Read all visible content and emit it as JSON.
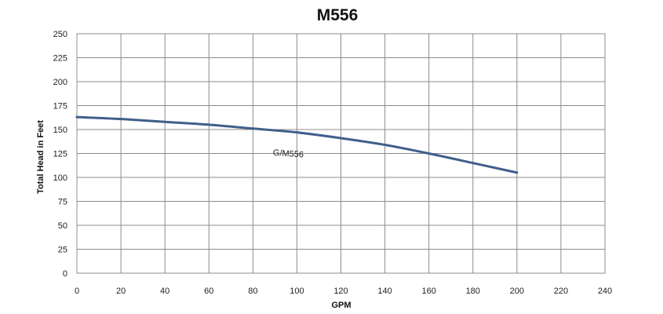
{
  "chart_data": {
    "type": "line",
    "title": "M556",
    "xlabel": "GPM",
    "ylabel": "Total Head in Feet",
    "xlim": [
      0,
      240
    ],
    "ylim": [
      0,
      250
    ],
    "xticks": [
      0,
      20,
      40,
      60,
      80,
      100,
      120,
      140,
      160,
      180,
      200,
      220,
      240
    ],
    "yticks": [
      0,
      25,
      50,
      75,
      100,
      125,
      150,
      175,
      200,
      225,
      250
    ],
    "grid": true,
    "series": [
      {
        "name": "G/M556",
        "color": "#3f5f8a",
        "x": [
          0,
          20,
          40,
          60,
          80,
          100,
          120,
          140,
          160,
          180,
          200
        ],
        "y": [
          163,
          161,
          158,
          155,
          151,
          147,
          141,
          134,
          125,
          115,
          105
        ]
      }
    ],
    "annotations": [
      {
        "text": "G/M556",
        "x": 96,
        "y": 122
      }
    ]
  }
}
